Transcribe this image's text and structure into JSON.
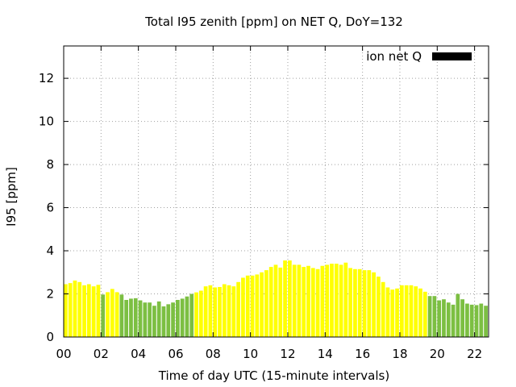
{
  "colors": {
    "yellow": "#ffff00",
    "green": "#7cbf42",
    "legend_swatch": "#000000",
    "grid": "#a0a0a0",
    "axis": "#000000",
    "background": "#ffffff"
  },
  "chart_data": {
    "type": "bar",
    "title": "Total I95 zenith [ppm] on NET Q, DoY=132",
    "xlabel": "Time of day UTC (15-minute intervals)",
    "ylabel": "I95 [ppm]",
    "xlim": [
      0,
      22.75
    ],
    "ylim": [
      0,
      13.5
    ],
    "x_ticks": [
      "00",
      "02",
      "04",
      "06",
      "08",
      "10",
      "12",
      "14",
      "16",
      "18",
      "20",
      "22"
    ],
    "x_tick_values": [
      0,
      2,
      4,
      6,
      8,
      10,
      12,
      14,
      16,
      18,
      20,
      22
    ],
    "y_ticks": [
      "0",
      "2",
      "4",
      "6",
      "8",
      "10",
      "12"
    ],
    "y_tick_values": [
      0,
      2,
      4,
      6,
      8,
      10,
      12
    ],
    "grid": true,
    "legend": {
      "position": "top-right",
      "entries": [
        {
          "label": "ion net Q"
        }
      ]
    },
    "bar_interval_hours": 0.25,
    "series": [
      {
        "name": "ion net Q",
        "values": [
          2.45,
          2.5,
          2.62,
          2.55,
          2.4,
          2.45,
          2.35,
          2.42,
          1.97,
          2.08,
          2.23,
          2.08,
          1.97,
          1.72,
          1.78,
          1.8,
          1.7,
          1.6,
          1.6,
          1.45,
          1.65,
          1.42,
          1.52,
          1.6,
          1.72,
          1.78,
          1.88,
          2.0,
          2.07,
          2.15,
          2.35,
          2.4,
          2.3,
          2.32,
          2.45,
          2.4,
          2.35,
          2.55,
          2.75,
          2.85,
          2.85,
          2.9,
          3.0,
          3.1,
          3.25,
          3.35,
          3.22,
          3.55,
          3.55,
          3.35,
          3.35,
          3.25,
          3.3,
          3.2,
          3.15,
          3.3,
          3.35,
          3.4,
          3.4,
          3.35,
          3.45,
          3.2,
          3.15,
          3.15,
          3.1,
          3.1,
          3.0,
          2.8,
          2.55,
          2.3,
          2.2,
          2.25,
          2.4,
          2.4,
          2.4,
          2.35,
          2.25,
          2.1,
          1.9,
          1.9,
          1.7,
          1.75,
          1.6,
          1.5,
          2.0,
          1.75,
          1.55,
          1.5,
          1.48,
          1.55,
          1.45
        ],
        "colors": [
          "y",
          "y",
          "y",
          "y",
          "y",
          "y",
          "y",
          "y",
          "g",
          "y",
          "y",
          "y",
          "g",
          "g",
          "g",
          "g",
          "g",
          "g",
          "g",
          "g",
          "g",
          "g",
          "g",
          "g",
          "g",
          "g",
          "g",
          "g",
          "y",
          "y",
          "y",
          "y",
          "y",
          "y",
          "y",
          "y",
          "y",
          "y",
          "y",
          "y",
          "y",
          "y",
          "y",
          "y",
          "y",
          "y",
          "y",
          "y",
          "y",
          "y",
          "y",
          "y",
          "y",
          "y",
          "y",
          "y",
          "y",
          "y",
          "y",
          "y",
          "y",
          "y",
          "y",
          "y",
          "y",
          "y",
          "y",
          "y",
          "y",
          "y",
          "y",
          "y",
          "y",
          "y",
          "y",
          "y",
          "y",
          "y",
          "g",
          "g",
          "g",
          "g",
          "g",
          "g",
          "g",
          "g",
          "g",
          "g",
          "g",
          "g",
          "g"
        ]
      }
    ]
  }
}
